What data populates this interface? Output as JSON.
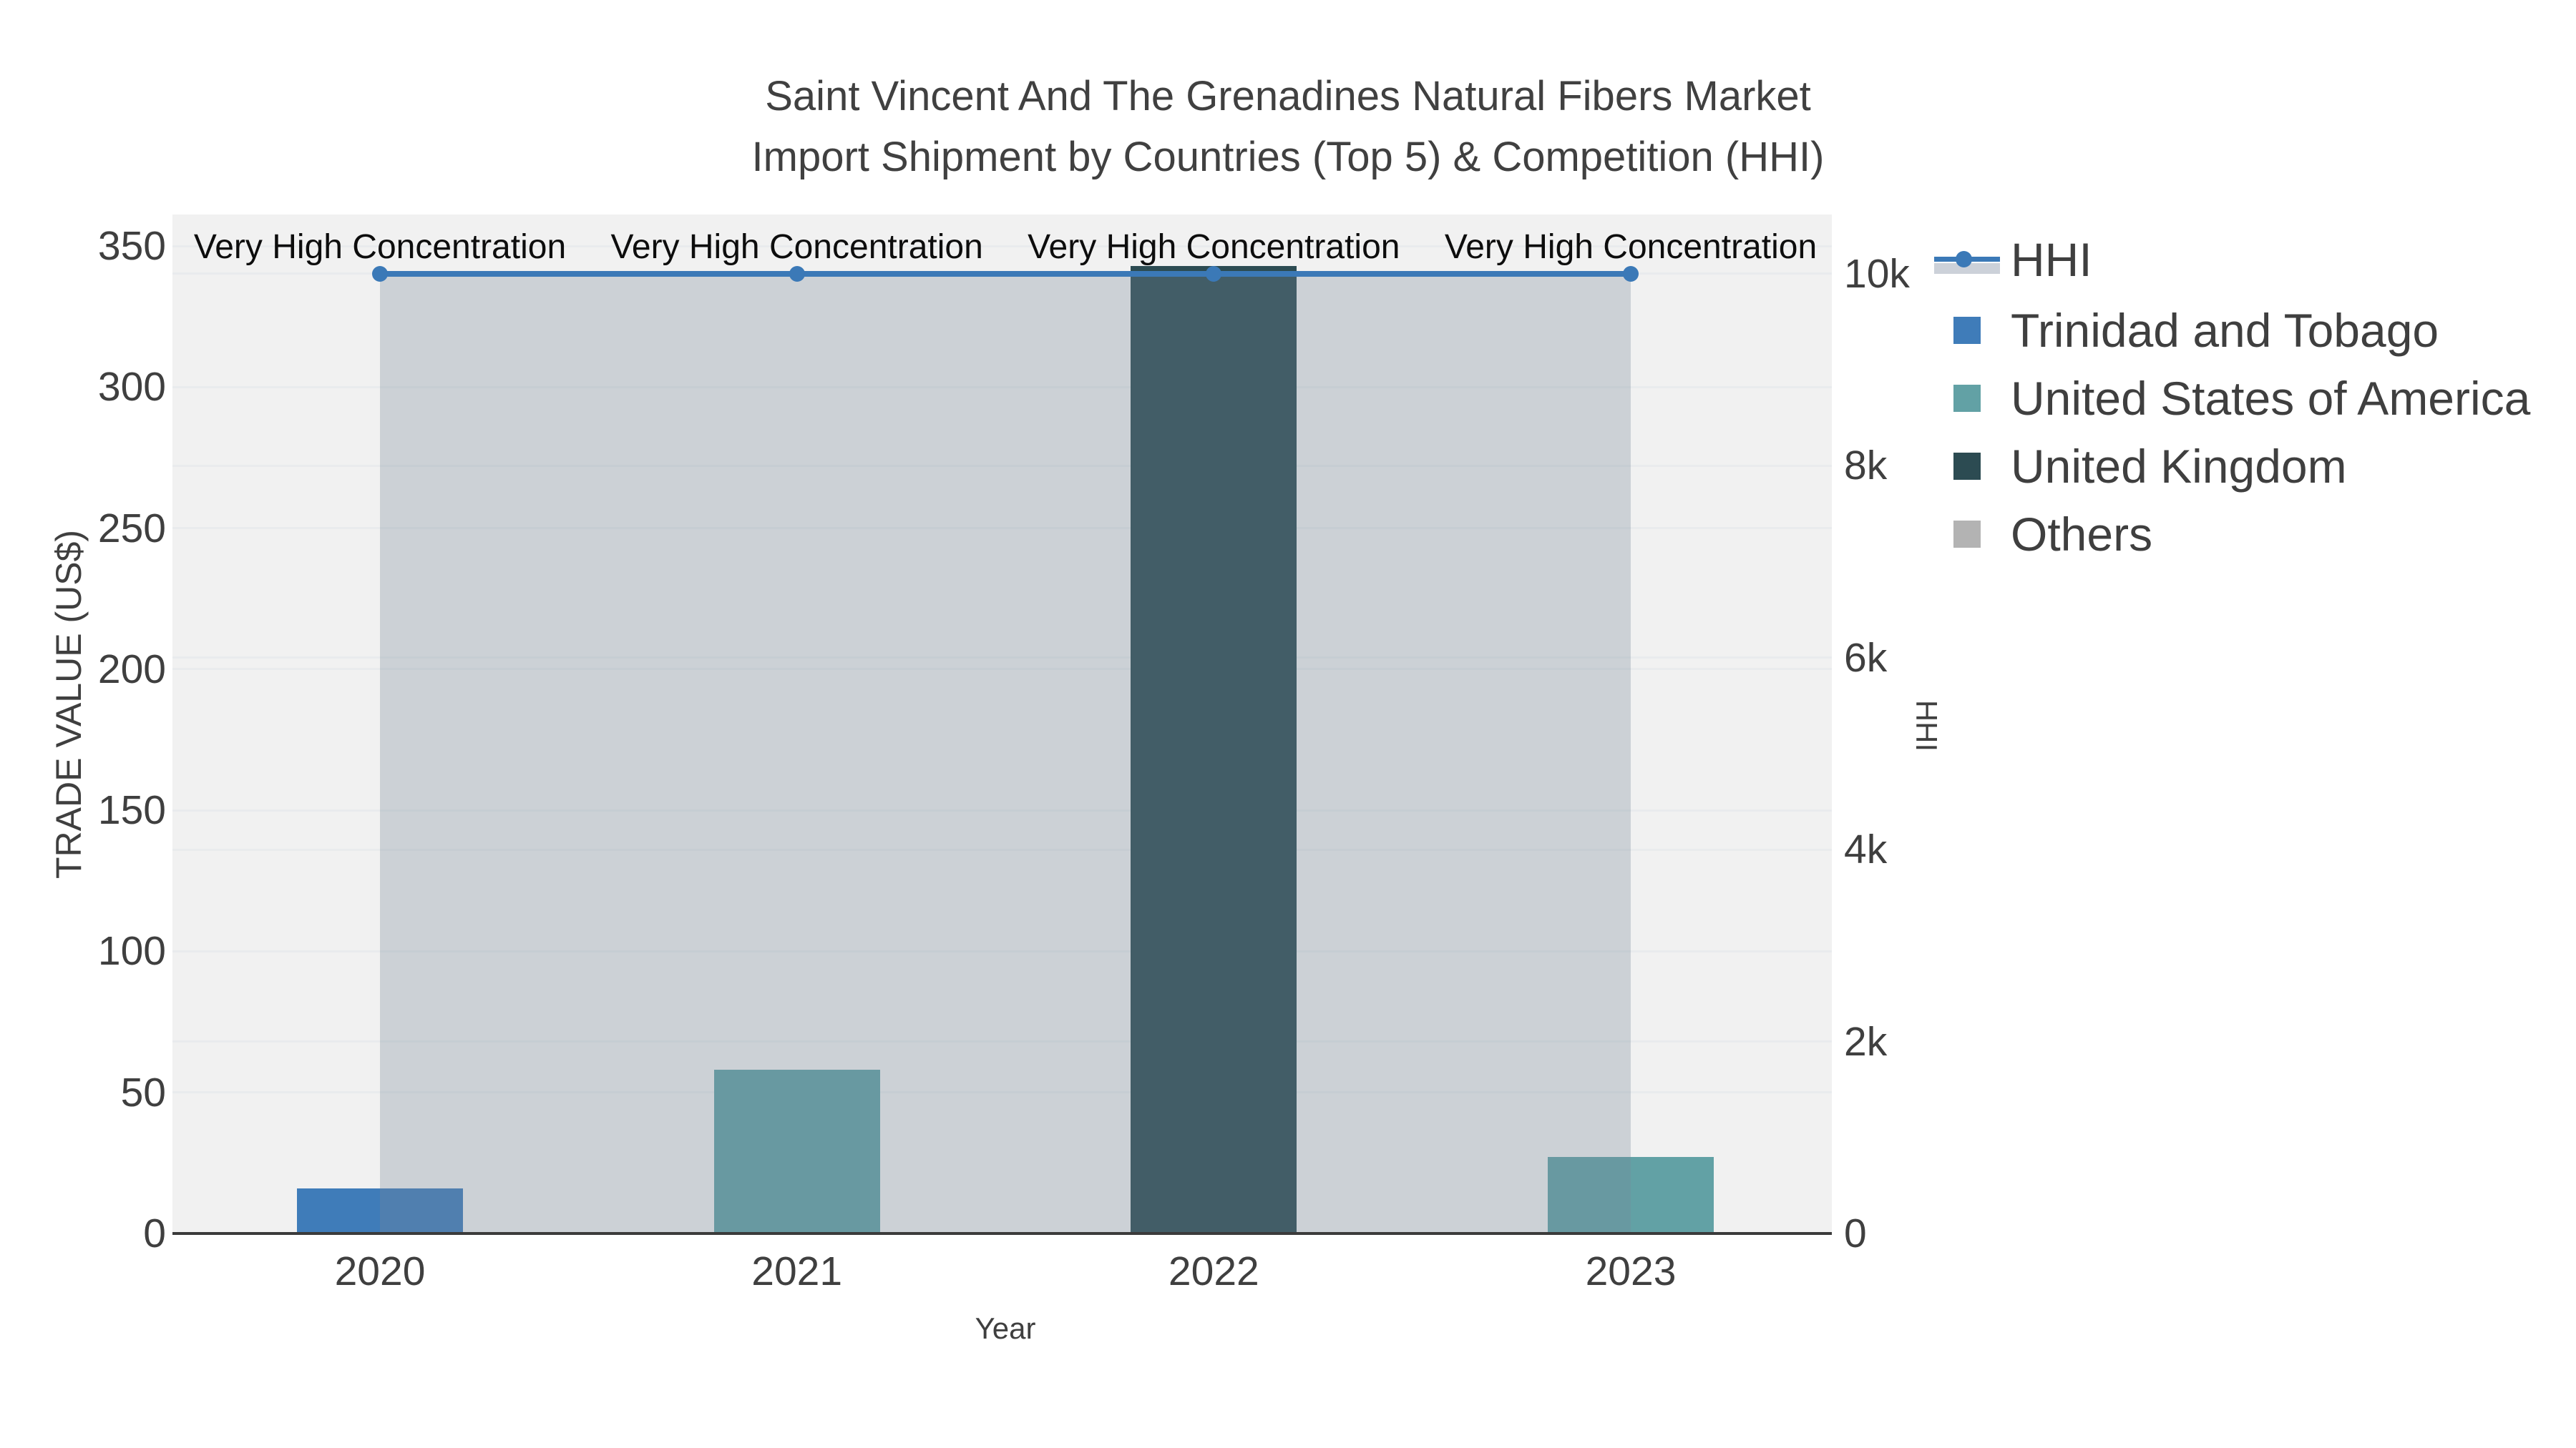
{
  "title": {
    "line1": "Saint Vincent And The Grenadines Natural Fibers Market",
    "line2": "Import Shipment by Countries (Top 5) & Competition (HHI)"
  },
  "axes": {
    "x_label": "Year",
    "y_left_label": "TRADE VALUE (US$)",
    "y_right_label": "HHI"
  },
  "legend": {
    "items": [
      {
        "label": "HHI",
        "type": "line",
        "color": "#3B79B7",
        "band_color": "#CCD1D9"
      },
      {
        "label": "Trinidad and Tobago",
        "type": "swatch",
        "color": "#3F7CB9"
      },
      {
        "label": "United States of America",
        "type": "swatch",
        "color": "#62A1A5"
      },
      {
        "label": "United Kingdom",
        "type": "swatch",
        "color": "#2C4B52"
      },
      {
        "label": "Others",
        "type": "swatch",
        "color": "#B3B3B3"
      }
    ]
  },
  "chart_data": {
    "type": "bar+line",
    "title": "Saint Vincent And The Grenadines Natural Fibers Market Import Shipment by Countries (Top 5) & Competition (HHI)",
    "categories": [
      "2020",
      "2021",
      "2022",
      "2023"
    ],
    "bar_series": [
      {
        "name": "Trinidad and Tobago",
        "color": "#3F7CB9",
        "values": [
          16,
          null,
          null,
          null
        ]
      },
      {
        "name": "United States of America",
        "color": "#62A1A5",
        "values": [
          null,
          58,
          null,
          27
        ]
      },
      {
        "name": "United Kingdom",
        "color": "#2C4B52",
        "values": [
          null,
          null,
          343,
          null
        ]
      },
      {
        "name": "Others",
        "color": "#B3B3B3",
        "values": [
          null,
          null,
          null,
          null
        ]
      }
    ],
    "line_series": {
      "name": "HHI",
      "axis": "right",
      "color": "#3B79B7",
      "band_color": "rgba(119,136,153,0.30)",
      "values": [
        10000,
        10000,
        10000,
        10000
      ]
    },
    "annotations": [
      {
        "category": "2020",
        "text": "Very High Concentration"
      },
      {
        "category": "2021",
        "text": "Very High Concentration"
      },
      {
        "category": "2022",
        "text": "Very High Concentration"
      },
      {
        "category": "2023",
        "text": "Very High Concentration"
      }
    ],
    "xlabel": "Year",
    "y_left": {
      "label": "TRADE VALUE (US$)",
      "min": 0,
      "max": 361,
      "ticks": [
        0,
        50,
        100,
        150,
        200,
        250,
        300,
        350
      ],
      "tick_labels": [
        "0",
        "50",
        "100",
        "150",
        "200",
        "250",
        "300",
        "350"
      ]
    },
    "y_right": {
      "label": "HHI",
      "min": 0,
      "max": 10615,
      "ticks": [
        0,
        2000,
        4000,
        6000,
        8000,
        10000
      ],
      "tick_labels": [
        "0",
        "2k",
        "4k",
        "6k",
        "8k",
        "10k"
      ]
    },
    "grid": true,
    "legend_position": "right",
    "plot_background": "#f1f1f1"
  }
}
